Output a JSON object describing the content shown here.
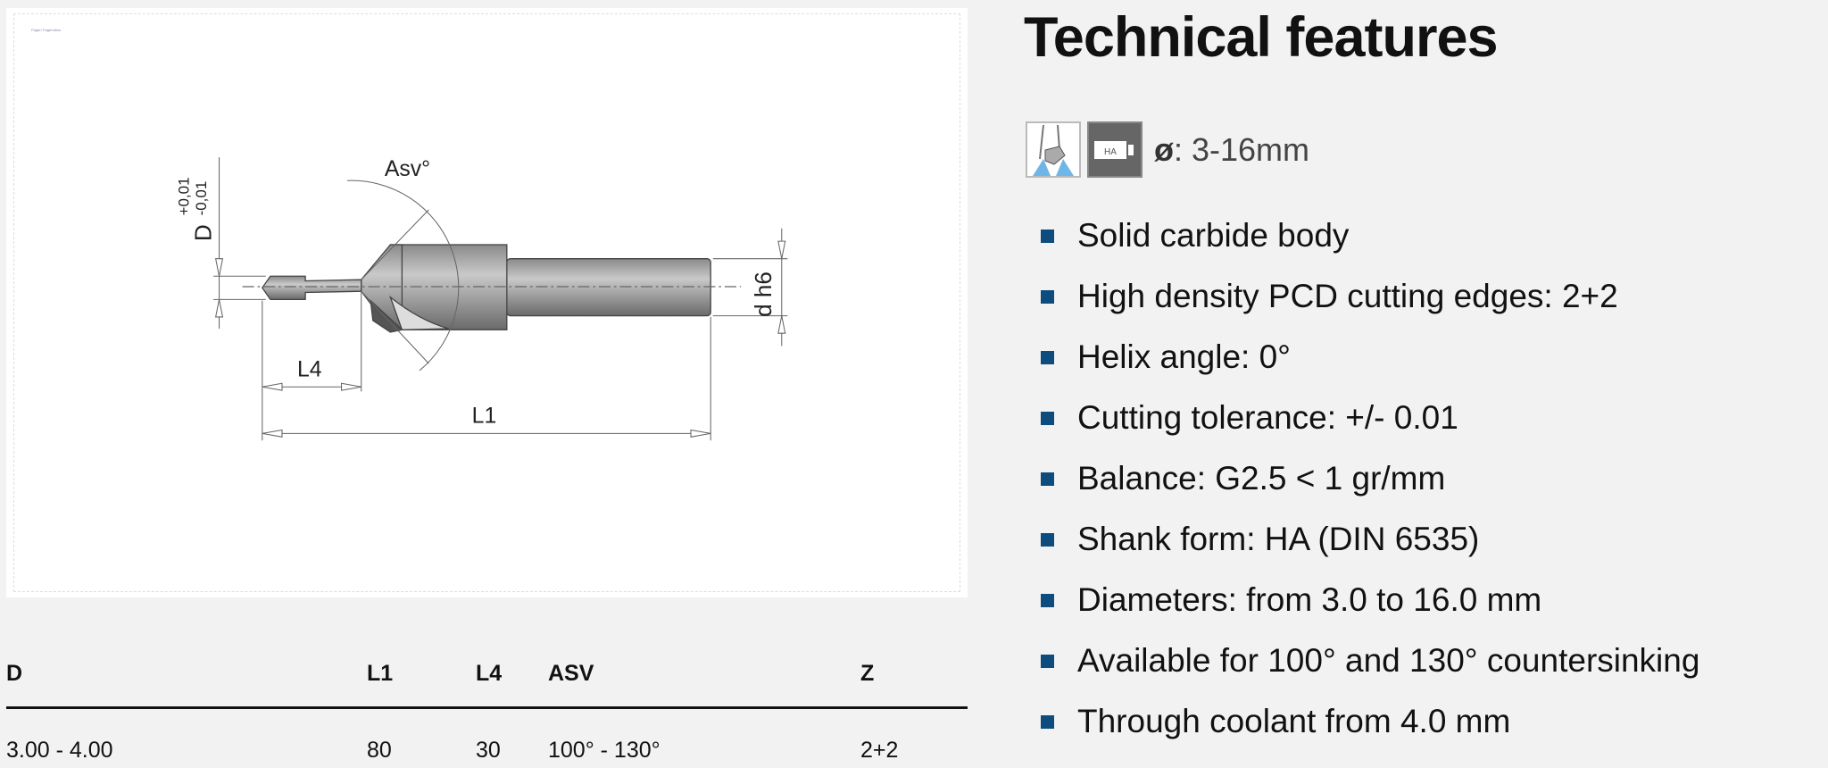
{
  "drawing": {
    "caption": "Pagbr/ Pagbr/ation",
    "labels": {
      "asv": "Asv°",
      "d_upper": "D",
      "tol": "+0,01\n-0,01",
      "tol_plus": "+0,01",
      "tol_minus": "-0,01",
      "shank": "d  h6",
      "l4": "L4",
      "l1": "L1"
    }
  },
  "table": {
    "headers": [
      "D",
      "L1",
      "L4",
      "ASV",
      "Z"
    ],
    "rows": [
      [
        "3.00 - 4.00",
        "80",
        "30",
        "100° - 130°",
        "2+2"
      ]
    ]
  },
  "features": {
    "title": "Technical features",
    "icons": [
      "tool-coolant-icon",
      "shank-ha-icon"
    ],
    "diameter_symbol": "ø",
    "diameter_value": ": 3-16mm",
    "bullet_color": "#0d4c7c",
    "items": [
      "Solid carbide body",
      "High density PCD cutting edges: 2+2",
      "Helix angle: 0°",
      "Cutting tolerance: +/- 0.01",
      "Balance: G2.5 < 1 gr/mm",
      "Shank form: HA (DIN 6535)",
      "Diameters: from 3.0 to 16.0 mm",
      "Available for 100° and 130° countersinking",
      "Through coolant from 4.0 mm"
    ]
  }
}
